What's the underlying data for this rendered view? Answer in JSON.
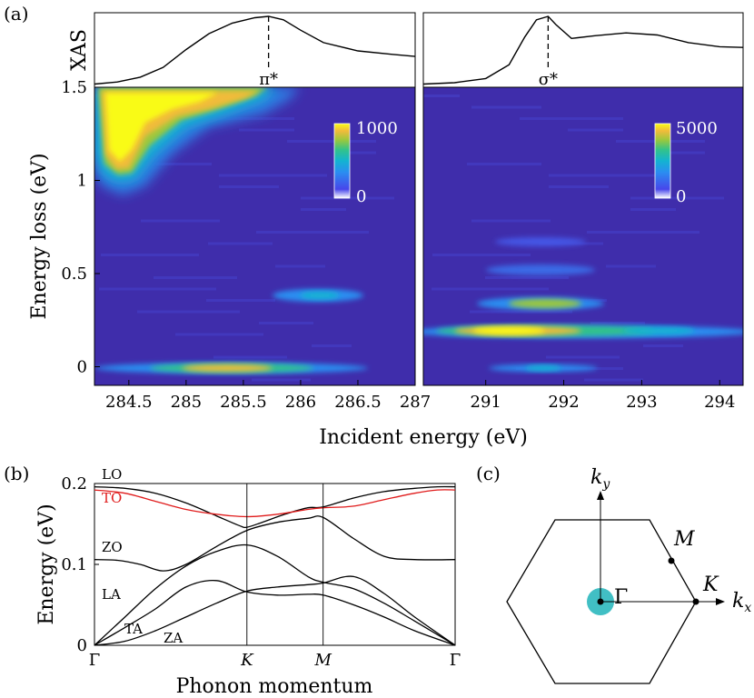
{
  "panel_labels": [
    "(a)",
    "(b)",
    "(c)"
  ],
  "colors": {
    "colormap": [
      "#3e26a8",
      "#4746eb",
      "#2a8ef1",
      "#13b3d1",
      "#33c389",
      "#9bc83d",
      "#f1bb3b",
      "#f9fb15"
    ],
    "background": "#3f2dab",
    "to_branch": "#e01b1b",
    "gamma_disk": "#41bfc4"
  },
  "chart_data": [
    {
      "type": "line",
      "panel": "a-left-top",
      "ylabel": "XAS",
      "xlim": [
        284.2,
        287
      ],
      "x": [
        284.2,
        284.4,
        284.6,
        284.8,
        285.0,
        285.2,
        285.4,
        285.6,
        285.72,
        285.85,
        286.0,
        286.2,
        286.5,
        286.8,
        287.0
      ],
      "y": [
        0.02,
        0.05,
        0.12,
        0.26,
        0.52,
        0.75,
        0.9,
        0.98,
        1.0,
        0.95,
        0.8,
        0.62,
        0.5,
        0.45,
        0.42
      ],
      "annotations": [
        {
          "text": "π*",
          "x": 285.72
        }
      ]
    },
    {
      "type": "line",
      "panel": "a-right-top",
      "xlim": [
        290.2,
        294.3
      ],
      "x": [
        290.2,
        290.6,
        291.0,
        291.3,
        291.5,
        291.65,
        291.8,
        291.9,
        292.1,
        292.4,
        292.8,
        293.2,
        293.6,
        294.0,
        294.3
      ],
      "y": [
        0.02,
        0.04,
        0.1,
        0.3,
        0.7,
        0.95,
        1.0,
        0.88,
        0.68,
        0.72,
        0.76,
        0.73,
        0.62,
        0.56,
        0.55
      ],
      "annotations": [
        {
          "text": "σ*",
          "x": 291.8
        }
      ]
    },
    {
      "type": "heatmap",
      "panel": "a-left",
      "xlabel": "Incident energy (eV)",
      "ylabel": "Energy loss (eV)",
      "xlim": [
        284.2,
        287
      ],
      "ylim": [
        -0.1,
        1.5
      ],
      "xticks": [
        "284.5",
        "285",
        "285.5",
        "286",
        "286.5",
        "287"
      ],
      "xtick_values": [
        284.5,
        285,
        285.5,
        286,
        286.5,
        287
      ],
      "yticks": [
        "0",
        "0.5",
        "1",
        "1.5"
      ],
      "ytick_values": [
        0,
        0.5,
        1,
        1.5
      ],
      "colorbar": {
        "min": "0",
        "max": "1000"
      },
      "features": [
        {
          "x": 285.5,
          "y": 0.0,
          "intensity": 0.65
        },
        {
          "x": 286.2,
          "y": 0.38,
          "intensity": 0.35
        },
        {
          "x": 284.5,
          "y": 1.15,
          "intensity": 1.0
        }
      ]
    },
    {
      "type": "heatmap",
      "panel": "a-right",
      "xlim": [
        290.2,
        294.3
      ],
      "ylim": [
        -0.1,
        1.5
      ],
      "xticks": [
        "291",
        "292",
        "293",
        "294"
      ],
      "xtick_values": [
        291,
        292,
        293,
        294
      ],
      "colorbar": {
        "min": "0",
        "max": "5000"
      },
      "features": [
        {
          "x": 291.3,
          "y": 0.19,
          "intensity": 1.0
        },
        {
          "x": 291.7,
          "y": 0.34,
          "intensity": 0.5
        },
        {
          "x": 291.6,
          "y": 0.52,
          "intensity": 0.22
        },
        {
          "x": 291.6,
          "y": 0.0,
          "intensity": 0.3
        }
      ]
    },
    {
      "type": "line",
      "panel": "b",
      "xlabel": "Phonon momentum",
      "ylabel": "Energy (eV)",
      "ylim": [
        0,
        0.2
      ],
      "yticks": [
        "0",
        "0.1",
        "0.2"
      ],
      "ytick_values": [
        0,
        0.1,
        0.2
      ],
      "path_ticks": [
        {
          "label": "Γ",
          "x": 0
        },
        {
          "label": "K",
          "x": 1
        },
        {
          "label": "M",
          "x": 1.5
        },
        {
          "label": "Γ",
          "x": 2.366
        }
      ],
      "series": [
        {
          "name": "LO",
          "x": [
            0,
            0.2,
            0.4,
            0.6,
            0.8,
            0.95,
            1.0,
            1.1,
            1.25,
            1.4,
            1.5,
            1.7,
            1.9,
            2.1,
            2.25,
            2.366
          ],
          "y": [
            0.196,
            0.194,
            0.188,
            0.176,
            0.16,
            0.148,
            0.146,
            0.152,
            0.162,
            0.17,
            0.171,
            0.182,
            0.19,
            0.194,
            0.196,
            0.196
          ]
        },
        {
          "name": "TO",
          "x": [
            0,
            0.2,
            0.4,
            0.6,
            0.8,
            1.0,
            1.2,
            1.4,
            1.5,
            1.7,
            1.9,
            2.1,
            2.25,
            2.366
          ],
          "y": [
            0.192,
            0.188,
            0.178,
            0.168,
            0.162,
            0.159,
            0.162,
            0.168,
            0.17,
            0.172,
            0.18,
            0.188,
            0.192,
            0.192
          ]
        },
        {
          "name": "ZO",
          "x": [
            0,
            0.15,
            0.3,
            0.45,
            0.6,
            0.8,
            1.0,
            1.2,
            1.4,
            1.5,
            1.7,
            1.9,
            2.1,
            2.366
          ],
          "y": [
            0.106,
            0.105,
            0.1,
            0.092,
            0.1,
            0.122,
            0.142,
            0.152,
            0.157,
            0.158,
            0.132,
            0.11,
            0.106,
            0.106
          ]
        },
        {
          "name": "LA",
          "x": [
            0,
            0.2,
            0.4,
            0.6,
            0.8,
            1.0,
            1.2,
            1.4,
            1.5,
            1.7,
            1.9,
            2.1,
            2.366
          ],
          "y": [
            0,
            0.035,
            0.07,
            0.098,
            0.116,
            0.124,
            0.11,
            0.085,
            0.078,
            0.07,
            0.052,
            0.03,
            0
          ]
        },
        {
          "name": "TA",
          "x": [
            0,
            0.2,
            0.4,
            0.6,
            0.8,
            1.0,
            1.2,
            1.4,
            1.5,
            1.7,
            1.9,
            2.1,
            2.366
          ],
          "y": [
            0,
            0.022,
            0.045,
            0.072,
            0.08,
            0.066,
            0.062,
            0.063,
            0.062,
            0.05,
            0.035,
            0.018,
            0
          ]
        },
        {
          "name": "ZA",
          "x": [
            0,
            0.2,
            0.4,
            0.6,
            0.8,
            1.0,
            1.2,
            1.4,
            1.5,
            1.7,
            1.9,
            2.1,
            2.366
          ],
          "y": [
            0,
            0.005,
            0.018,
            0.035,
            0.052,
            0.067,
            0.072,
            0.075,
            0.077,
            0.085,
            0.064,
            0.035,
            0
          ]
        }
      ]
    },
    {
      "type": "diagram",
      "panel": "c",
      "axis_labels": {
        "ky": "k_y",
        "kx": "k_x"
      },
      "points": [
        "Γ",
        "M",
        "K"
      ]
    }
  ]
}
